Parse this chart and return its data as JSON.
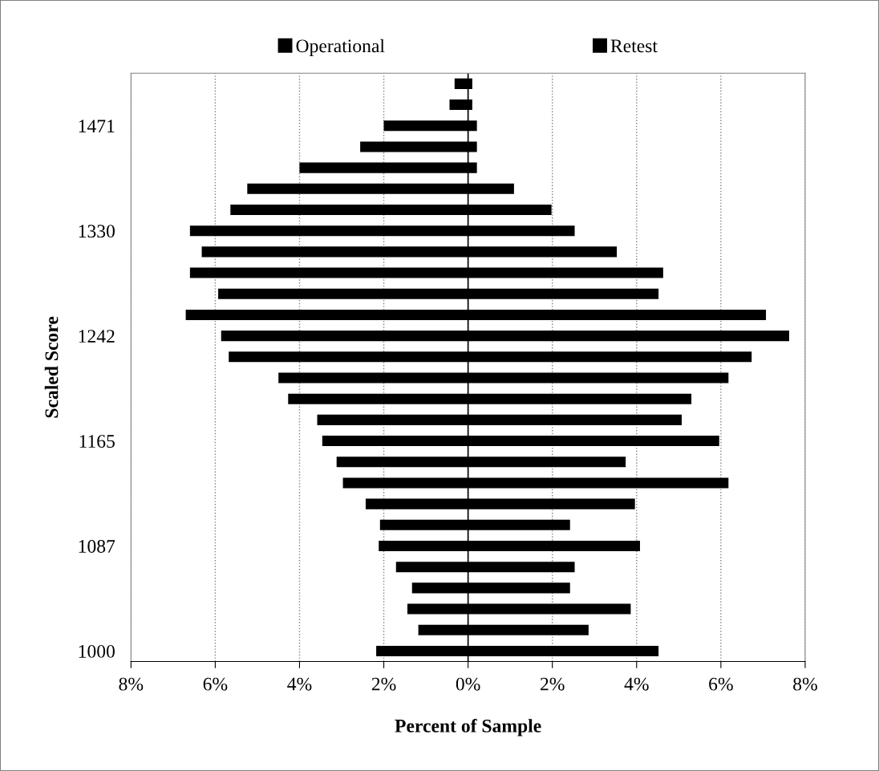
{
  "chart_data": {
    "type": "bar",
    "orientation": "horizontal",
    "xlabel": "Percent of Sample",
    "ylabel": "Scaled Score",
    "categories": [
      null,
      null,
      "1471",
      null,
      null,
      null,
      null,
      "1330",
      null,
      null,
      null,
      null,
      "1242",
      null,
      null,
      null,
      null,
      "1165",
      null,
      null,
      null,
      null,
      "1087",
      null,
      null,
      null,
      null,
      "1000"
    ],
    "series": [
      {
        "name": "Operational",
        "color": "#000000",
        "values": [
          -0.32,
          -0.44,
          -2.0,
          -2.56,
          -4.0,
          -5.24,
          -5.64,
          -6.6,
          -6.32,
          -6.6,
          -5.93,
          -6.7,
          -5.86,
          -5.68,
          -4.5,
          -4.27,
          -3.58,
          -3.46,
          -3.12,
          -2.97,
          -2.43,
          -2.09,
          -2.12,
          -1.71,
          -1.33,
          -1.44,
          -1.18,
          -2.18
        ]
      },
      {
        "name": "Retest",
        "color": "#000000",
        "values": [
          0.1,
          0.1,
          0.21,
          0.21,
          0.21,
          1.09,
          1.98,
          2.53,
          3.53,
          4.63,
          4.52,
          7.07,
          7.62,
          6.73,
          6.18,
          5.3,
          5.07,
          5.96,
          3.74,
          6.18,
          3.96,
          2.42,
          4.08,
          2.53,
          2.42,
          3.86,
          2.86,
          4.52
        ]
      }
    ],
    "xlim": [
      -8,
      8
    ],
    "xticks": [
      {
        "value": -8,
        "label": "8%"
      },
      {
        "value": -6,
        "label": "6%"
      },
      {
        "value": -4,
        "label": "4%"
      },
      {
        "value": -2,
        "label": "2%"
      },
      {
        "value": 0,
        "label": "0%"
      },
      {
        "value": 2,
        "label": "2%"
      },
      {
        "value": 4,
        "label": "4%"
      },
      {
        "value": 6,
        "label": "6%"
      },
      {
        "value": 8,
        "label": "8%"
      }
    ],
    "stacked": true,
    "grid": "x",
    "legend": "top"
  }
}
